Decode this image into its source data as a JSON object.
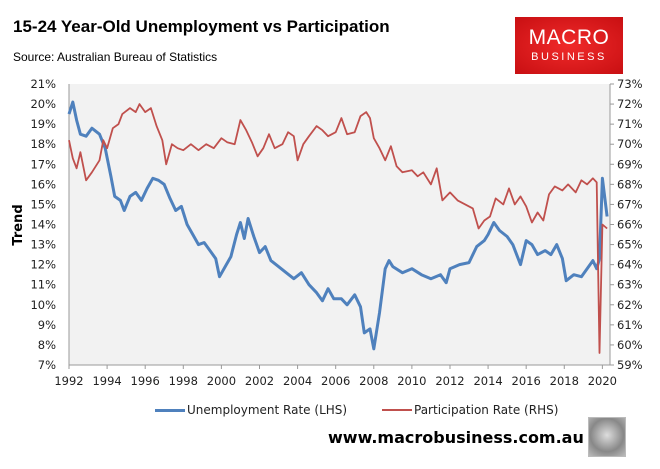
{
  "header": {
    "title": "15-24 Year-Old Unemployment vs Participation",
    "source": "Source: Australian Bureau of Statistics"
  },
  "logo": {
    "line1": "MACRO",
    "line2": "BUSINESS"
  },
  "footer": {
    "url": "www.macrobusiness.com.au"
  },
  "chart_data": {
    "type": "line",
    "title": "15-24 Year-Old Unemployment vs Participation",
    "ylabel": "Trend",
    "xlim": [
      1992,
      2020.4
    ],
    "ylim_left": [
      7,
      21
    ],
    "ylim_right": [
      59,
      73
    ],
    "x_ticks": [
      "1992",
      "1994",
      "1996",
      "1998",
      "2000",
      "2002",
      "2004",
      "2006",
      "2008",
      "2010",
      "2012",
      "2014",
      "2016",
      "2018",
      "2020"
    ],
    "y_ticks_left": [
      "7%",
      "8%",
      "9%",
      "10%",
      "11%",
      "12%",
      "13%",
      "14%",
      "15%",
      "16%",
      "17%",
      "18%",
      "19%",
      "20%",
      "21%"
    ],
    "y_ticks_right": [
      "59%",
      "60%",
      "61%",
      "62%",
      "63%",
      "64%",
      "65%",
      "66%",
      "67%",
      "68%",
      "69%",
      "70%",
      "71%",
      "72%",
      "73%"
    ],
    "legend_position": "bottom",
    "series": [
      {
        "name": "Unemployment Rate (LHS)",
        "axis": "left",
        "color": "#4f81bd",
        "x": [
          1992.0,
          1992.2,
          1992.4,
          1992.6,
          1992.9,
          1993.2,
          1993.6,
          1993.9,
          1994.2,
          1994.4,
          1994.7,
          1994.9,
          1995.2,
          1995.5,
          1995.8,
          1996.1,
          1996.4,
          1996.7,
          1997.0,
          1997.3,
          1997.6,
          1997.9,
          1998.2,
          1998.5,
          1998.8,
          1999.1,
          1999.4,
          1999.7,
          1999.9,
          2000.2,
          2000.5,
          2000.8,
          2001.0,
          2001.2,
          2001.4,
          2001.7,
          2002.0,
          2002.3,
          2002.6,
          2003.0,
          2003.4,
          2003.8,
          2004.2,
          2004.6,
          2005.0,
          2005.3,
          2005.6,
          2005.9,
          2006.3,
          2006.6,
          2007.0,
          2007.3,
          2007.5,
          2007.8,
          2008.0,
          2008.3,
          2008.6,
          2008.8,
          2009.0,
          2009.5,
          2010.0,
          2010.5,
          2011.0,
          2011.5,
          2011.8,
          2012.0,
          2012.5,
          2013.0,
          2013.4,
          2013.8,
          2014.0,
          2014.3,
          2014.6,
          2015.0,
          2015.3,
          2015.7,
          2016.0,
          2016.3,
          2016.6,
          2017.0,
          2017.3,
          2017.6,
          2017.9,
          2018.1,
          2018.5,
          2018.9,
          2019.2,
          2019.5,
          2019.7,
          2019.85,
          2020.0,
          2020.25
        ],
        "values": [
          19.5,
          20.1,
          19.2,
          18.5,
          18.4,
          18.8,
          18.5,
          17.8,
          16.4,
          15.4,
          15.2,
          14.7,
          15.4,
          15.6,
          15.2,
          15.8,
          16.3,
          16.2,
          16.0,
          15.3,
          14.7,
          14.9,
          14.0,
          13.5,
          13.0,
          13.1,
          12.7,
          12.3,
          11.4,
          11.9,
          12.4,
          13.5,
          14.1,
          13.3,
          14.3,
          13.4,
          12.6,
          12.9,
          12.2,
          11.9,
          11.6,
          11.3,
          11.6,
          11.0,
          10.6,
          10.2,
          10.8,
          10.3,
          10.3,
          10.0,
          10.5,
          9.9,
          8.6,
          8.8,
          7.8,
          9.6,
          11.8,
          12.2,
          11.9,
          11.6,
          11.8,
          11.5,
          11.3,
          11.5,
          11.1,
          11.8,
          12.0,
          12.1,
          12.9,
          13.2,
          13.5,
          14.1,
          13.7,
          13.4,
          13.0,
          12.0,
          13.2,
          13.0,
          12.5,
          12.7,
          12.5,
          13.0,
          12.3,
          11.2,
          11.5,
          11.4,
          11.8,
          12.2,
          11.8,
          12.3,
          16.3,
          14.4
        ]
      },
      {
        "name": "Participation Rate (RHS)",
        "axis": "right",
        "color": "#c0504d",
        "x": [
          1992.0,
          1992.2,
          1992.4,
          1992.6,
          1992.9,
          1993.2,
          1993.6,
          1993.8,
          1994.0,
          1994.3,
          1994.6,
          1994.8,
          1995.2,
          1995.5,
          1995.7,
          1996.0,
          1996.3,
          1996.6,
          1996.9,
          1997.1,
          1997.4,
          1997.7,
          1998.0,
          1998.4,
          1998.8,
          1999.2,
          1999.6,
          2000.0,
          2000.3,
          2000.7,
          2001.0,
          2001.3,
          2001.6,
          2001.9,
          2002.2,
          2002.5,
          2002.8,
          2003.2,
          2003.5,
          2003.8,
          2004.0,
          2004.3,
          2004.6,
          2005.0,
          2005.3,
          2005.6,
          2006.0,
          2006.3,
          2006.6,
          2007.0,
          2007.3,
          2007.6,
          2007.8,
          2008.0,
          2008.3,
          2008.6,
          2008.9,
          2009.2,
          2009.5,
          2010.0,
          2010.3,
          2010.6,
          2011.0,
          2011.3,
          2011.6,
          2012.0,
          2012.4,
          2012.8,
          2013.2,
          2013.5,
          2013.8,
          2014.1,
          2014.4,
          2014.8,
          2015.1,
          2015.4,
          2015.7,
          2016.0,
          2016.3,
          2016.6,
          2016.9,
          2017.2,
          2017.5,
          2017.9,
          2018.2,
          2018.6,
          2018.9,
          2019.2,
          2019.5,
          2019.7,
          2019.85,
          2020.0,
          2020.25
        ],
        "values": [
          70.2,
          69.3,
          68.8,
          69.6,
          68.2,
          68.6,
          69.2,
          70.2,
          69.8,
          70.8,
          71.0,
          71.5,
          71.8,
          71.6,
          72.0,
          71.6,
          71.8,
          70.9,
          70.2,
          69.0,
          70.0,
          69.8,
          69.7,
          70.0,
          69.7,
          70.0,
          69.8,
          70.3,
          70.1,
          70.0,
          71.2,
          70.7,
          70.1,
          69.4,
          69.8,
          70.5,
          69.8,
          70.0,
          70.6,
          70.4,
          69.2,
          70.0,
          70.4,
          70.9,
          70.7,
          70.4,
          70.6,
          71.3,
          70.5,
          70.6,
          71.4,
          71.6,
          71.3,
          70.3,
          69.8,
          69.2,
          69.9,
          68.9,
          68.6,
          68.7,
          68.4,
          68.6,
          68.0,
          68.8,
          67.2,
          67.6,
          67.2,
          67.0,
          66.8,
          65.8,
          66.2,
          66.4,
          67.3,
          67.0,
          67.8,
          67.0,
          67.4,
          66.9,
          66.1,
          66.6,
          66.2,
          67.5,
          67.9,
          67.7,
          68.0,
          67.6,
          68.2,
          68.0,
          68.3,
          68.1,
          59.6,
          66.0,
          65.8
        ]
      }
    ]
  }
}
